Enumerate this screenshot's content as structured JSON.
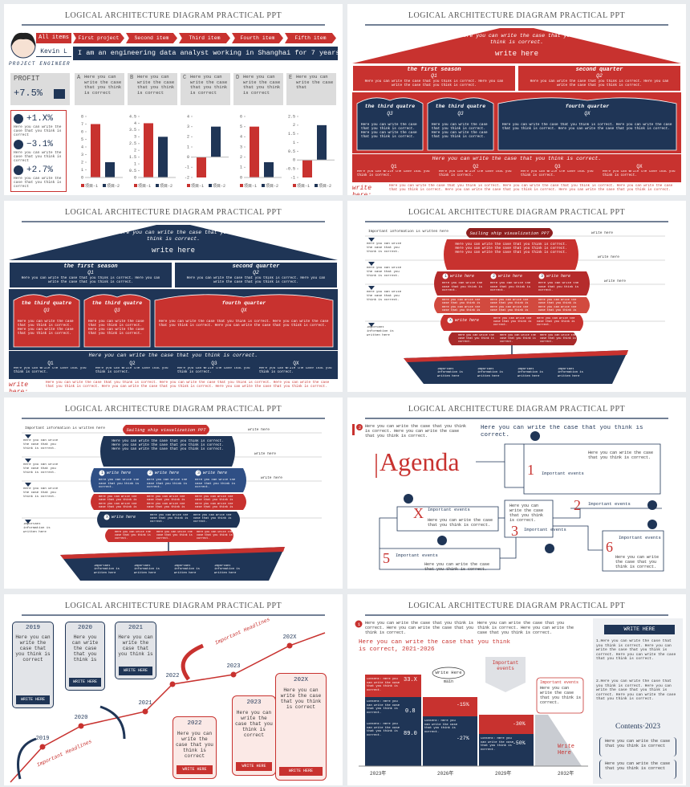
{
  "slides": [
    {
      "layout": "profile",
      "title": "LOGICAL ARCHITECTURE DIAGRAM PRACTICAL PPT",
      "all_items": "All items",
      "name": "Kevin L",
      "role": "PROJECT ENGINEER",
      "tabs": [
        "First project",
        "Second item",
        "Third item",
        "Fourth item",
        "Fifth item"
      ],
      "intro": "I am an engineering data analyst working in Shanghai for 7 years",
      "profit_label": "PROFIT",
      "profit_value": "+7.5%",
      "cards": [
        {
          "letter": "A",
          "text": "Here you can write the case that you think is correct"
        },
        {
          "letter": "B",
          "text": "Here you can write the case that you think is correct"
        },
        {
          "letter": "C",
          "text": "Here you can write the case that you think is correct"
        },
        {
          "letter": "D",
          "text": "Here you can write the case that you think is correct"
        },
        {
          "letter": "E",
          "text": "Here you can write the case that"
        }
      ],
      "stats": [
        {
          "value": "+1.X%",
          "text": "Here you can write the case that you think is correct"
        },
        {
          "value": "−3.1%",
          "text": "Here you can write the case that you think is correct"
        },
        {
          "value": "+2.7%",
          "text": "Here you can write the case that you think is correct"
        }
      ],
      "chart_data": [
        {
          "type": "bar",
          "ylim": [
            0,
            8
          ],
          "yticks": [
            0,
            1,
            2,
            3,
            4,
            5,
            6,
            7,
            8
          ],
          "series": [
            {
              "name": "项目-1",
              "color": "#c8322f",
              "values": [
                7
              ]
            },
            {
              "name": "项目-2",
              "color": "#1f3556",
              "values": [
                2
              ]
            }
          ]
        },
        {
          "type": "bar",
          "ylim": [
            0,
            4.5
          ],
          "yticks": [
            0,
            0.5,
            1,
            1.5,
            2,
            2.5,
            3,
            3.5,
            4,
            4.5
          ],
          "series": [
            {
              "name": "项目-1",
              "color": "#c8322f",
              "values": [
                4
              ]
            },
            {
              "name": "项目-2",
              "color": "#1f3556",
              "values": [
                3
              ]
            }
          ]
        },
        {
          "type": "bar",
          "ylim": [
            -2,
            4
          ],
          "yticks": [
            -2,
            -1,
            0,
            1,
            2,
            3,
            4
          ],
          "series": [
            {
              "name": "项目-1",
              "color": "#c8322f",
              "values": [
                -2
              ]
            },
            {
              "name": "项目-2",
              "color": "#1f3556",
              "values": [
                3
              ]
            }
          ]
        },
        {
          "type": "bar",
          "ylim": [
            0,
            6
          ],
          "yticks": [
            0,
            1,
            2,
            3,
            4,
            5,
            6
          ],
          "series": [
            {
              "name": "项目-1",
              "color": "#c8322f",
              "values": [
                5
              ]
            },
            {
              "name": "项目-2",
              "color": "#1f3556",
              "values": [
                1.5
              ]
            }
          ]
        },
        {
          "type": "bar",
          "ylim": [
            -1,
            2.5
          ],
          "yticks": [
            -1,
            -0.5,
            0,
            0.5,
            1,
            1.5,
            2,
            2.5
          ],
          "series": [
            {
              "name": "项目-1",
              "color": "#c8322f",
              "values": [
                -1
              ]
            },
            {
              "name": "项目-2",
              "color": "#1f3556",
              "values": [
                2
              ]
            }
          ]
        }
      ]
    },
    {
      "layout": "house",
      "title": "LOGICAL ARCHITECTURE DIAGRAM PRACTICAL PPT",
      "outer_color": "#c8322f",
      "inner_color": "#1f3556",
      "roof_text": "Here you can write the case that you think is correct.",
      "roof_sub": "write here",
      "top_boxes": [
        {
          "heading": "the first season",
          "q": "Q1",
          "text": "Here you can write the case that you think is correct. Here you can write the case that you think is correct."
        },
        {
          "heading": "second quarter",
          "q": "Q2",
          "text": "Here you can write the case that you think is correct. Here you can write the case that you think is correct."
        }
      ],
      "mid_boxes": [
        {
          "heading": "the third quatre",
          "q": "Q3",
          "text": "Here you can write the case that you think is correct. Here you can write the case that you think is correct."
        },
        {
          "heading": "the third quatre",
          "q": "Q3",
          "text": "Here you can write the case that you think is correct. Here you can write the case that you think is correct."
        },
        {
          "heading": "fourth quarter",
          "q": "QX",
          "text": "Here you can write the case that you think is correct. Here you can write the case that you think is correct. Here you can write the case that you think is correct."
        }
      ],
      "band_title": "Here you can write the case that you think is correct.",
      "band_items": [
        {
          "q": "Q1",
          "text": "Here you can write the case that you think is correct."
        },
        {
          "q": "Q2",
          "text": "Here you can write the case that you think is correct."
        },
        {
          "q": "Q3",
          "text": "Here you can write the case that you think is correct."
        },
        {
          "q": "QX",
          "text": "Here you can write the case that you think is correct."
        }
      ],
      "footer_label": "write here:",
      "footer_text": "Here you can write the case that you think is correct. Here you can write the case that you think is correct. Here you can write the case that you think is correct. Here you can write the case that you think is correct. Here you can write the case that you think is correct."
    },
    {
      "layout": "house",
      "title": "LOGICAL ARCHITECTURE DIAGRAM PRACTICAL PPT",
      "outer_color": "#1f3556",
      "inner_color": "#c8322f",
      "roof_text": "Here you can write the case that you think is correct.",
      "roof_sub": "write here",
      "top_boxes": [
        {
          "heading": "the first season",
          "q": "Q1",
          "text": "Here you can write the case that you think is correct. Here you can write the case that you think is correct."
        },
        {
          "heading": "second quarter",
          "q": "Q2",
          "text": "Here you can write the case that you think is correct. Here you can write the case that you think is correct."
        }
      ],
      "mid_boxes": [
        {
          "heading": "the third quatre",
          "q": "Q3",
          "text": "Here you can write the case that you think is correct. Here you can write the case that you think is correct."
        },
        {
          "heading": "the third quatre",
          "q": "Q3",
          "text": "Here you can write the case that you think is correct. Here you can write the case that you think is correct."
        },
        {
          "heading": "fourth quarter",
          "q": "QX",
          "text": "Here you can write the case that you think is correct. Here you can write the case that you think is correct. Here you can write the case that you think is correct."
        }
      ],
      "band_title": "Here you can write the case that you think is correct.",
      "band_items": [
        {
          "q": "Q1",
          "text": "Here you can write the case that you think is correct."
        },
        {
          "q": "Q2",
          "text": "Here you can write the case that you think is correct."
        },
        {
          "q": "Q3",
          "text": "Here you can write the case that you think is correct."
        },
        {
          "q": "QX",
          "text": "Here you can write the case that you think is correct."
        }
      ],
      "footer_label": "write here:",
      "footer_text": "Here you can write the case that you think is correct. Here you can write the case that you think is correct. Here you can write the case that you think is correct. Here you can write the case that you think is correct. Here you can write the case that you think is correct."
    },
    {
      "layout": "ship",
      "title": "LOGICAL ARCHITECTURE DIAGRAM PRACTICAL PPT",
      "sail_colors": [
        "#8e1f1f",
        "#c8322f",
        "#b52b2b",
        "#d24a3f",
        "#c8322f",
        "#a82a2a"
      ],
      "hull_color": "#1f3556",
      "banner": "Sailing ship visualization PPT",
      "sail_text": "Here you can write the case that you think is correct. Here you can write the case that you think is correct. Here you can write the case that you think is correct.",
      "top_left": "Important information is written here",
      "right_labels": [
        "write here",
        "write here",
        "write here"
      ],
      "left_notes": [
        "Here you can write the case that you think is correct.",
        "Here you can write the case that you think is correct.",
        "Here you can write the case that you think is correct."
      ],
      "bottom_left": "Important information is written here",
      "steps": [
        {
          "num": "1",
          "label": "write here"
        },
        {
          "num": "2",
          "label": "write here"
        },
        {
          "num": "3",
          "label": "write here"
        }
      ],
      "x_step": {
        "num": "X",
        "label": "write here"
      },
      "cell_text": "Here you can write the case that you think is correct.",
      "hull_texts": [
        "Important information is written here",
        "Important information is written here",
        "Important information is written here",
        "Important information is written here"
      ]
    },
    {
      "layout": "ship",
      "title": "LOGICAL ARCHITECTURE DIAGRAM PRACTICAL PPT",
      "sail_colors": [
        "#c8322f",
        "#1f3556",
        "#2f4f85",
        "#c8322f",
        "#1f3556",
        "#c8322f"
      ],
      "hull_color": "#1f3556",
      "banner": "Sailing ship visualization PPT",
      "sail_text": "Here you can write the case that you think is correct. Here you can write the case that you think is correct. Here you can write the case that you think is correct.",
      "top_left": "Important information is written here",
      "right_labels": [
        "write here",
        "write here",
        "write here"
      ],
      "left_notes": [
        "Here you can write the case that you think is correct.",
        "Here you can write the case that you think is correct.",
        "Here you can write the case that you think is correct."
      ],
      "bottom_left": "Important information is written here",
      "steps": [
        {
          "num": "1",
          "label": "write here"
        },
        {
          "num": "2",
          "label": "write here"
        },
        {
          "num": "3",
          "label": "write here"
        }
      ],
      "x_step": {
        "num": "X",
        "label": "write here"
      },
      "cell_text": "Here you can write the case that you think is correct.",
      "hull_texts": [
        "Important information is written here",
        "Important information is written here",
        "Important information is written here",
        "Important information is written here"
      ]
    },
    {
      "layout": "agenda",
      "title": "LOGICAL ARCHITECTURE DIAGRAM PRACTICAL PPT",
      "badge": "2",
      "note": "Here you can write the case that you think is correct. Here you can write the case that you think is correct.",
      "lead": "Here you can write the case that you think is correct.",
      "heading": "Agenda",
      "items": [
        {
          "num": "1",
          "label": "Important events",
          "text": "Here you can write the case that you think is correct."
        },
        {
          "num": "2",
          "label": "Important events"
        },
        {
          "num": "3",
          "label": "Important events",
          "text": "Here you can write the case that you think is correct."
        },
        {
          "num": "X",
          "label": "Important events",
          "text": "Here you can write the case that you think is correct."
        },
        {
          "num": "5",
          "label": "Important events",
          "text": "Here you can write the case that you think is correct."
        },
        {
          "num": "6",
          "label": "Important events",
          "text": "Here you can write the case that you think is correct."
        }
      ]
    },
    {
      "layout": "timeline",
      "title": "LOGICAL ARCHITECTURE DIAGRAM PRACTICAL PPT",
      "top_cards": [
        {
          "year": "2019",
          "text": "Here you can write the case that you think is correct",
          "button": "WRITE HERE"
        },
        {
          "year": "2020",
          "text": "Here you can write the case that you think is",
          "button": "WRITE HERE"
        },
        {
          "year": "2021",
          "text": "Here you can write the case that you think is",
          "button": "WRITE HERE"
        }
      ],
      "bottom_cards": [
        {
          "year": "2022",
          "text": "Here you can write the case that you think is correct",
          "button": "WRITE HERE"
        },
        {
          "year": "2023",
          "text": "Here you can write the case that you think is correct",
          "button": "WRITE HERE"
        },
        {
          "year": "202X",
          "text": "Here you can write the case that you think is correct",
          "button": "WRITE HERE"
        }
      ],
      "points": [
        "2019",
        "2020",
        "2021",
        "2022",
        "2023",
        "202X"
      ],
      "headlines": [
        "Important Headlines",
        "Important Headlines"
      ]
    },
    {
      "layout": "report",
      "title": "LOGICAL ARCHITECTURE DIAGRAM PRACTICAL PPT",
      "badge": "1",
      "notes": [
        "Here you can write the case that you think is correct. Here you can write the case that you think is correct.",
        "Here you can write the case that you think is correct. Here you can write the case that you think is correct."
      ],
      "headline": "Here you can write the case that you think is correct, 2021-2026",
      "bar_text": "Content: Here you can write the case that you think is correct.",
      "value_labels": [
        "33.X",
        "0.8",
        "89.0"
      ],
      "pct_labels": [
        "-15%",
        "-27%",
        "-30%",
        "-50%"
      ],
      "years": [
        "2023年",
        "2026年",
        "2029年",
        "2032年"
      ],
      "bubble": "Write Here",
      "bubble_sub": "main",
      "important": "Important events",
      "event_title": "Important events",
      "event_text": "Here you can write the case that you think is correct.",
      "corner": "Write Here",
      "button": "WRITE HERE",
      "paras": [
        "1.Here you can write the case that you think is correct. Here you can write the case that you think is correct. Here you can write the case that you think is correct.",
        "2.Here you can write the case that you think is correct. Here you can write the case that you think is correct. Here you can write the case that you think is correct."
      ],
      "contents": "Contents·2023",
      "boxes": [
        "Here you can write the case that you think is correct",
        "Here you can write the case that you think is correct"
      ]
    }
  ]
}
